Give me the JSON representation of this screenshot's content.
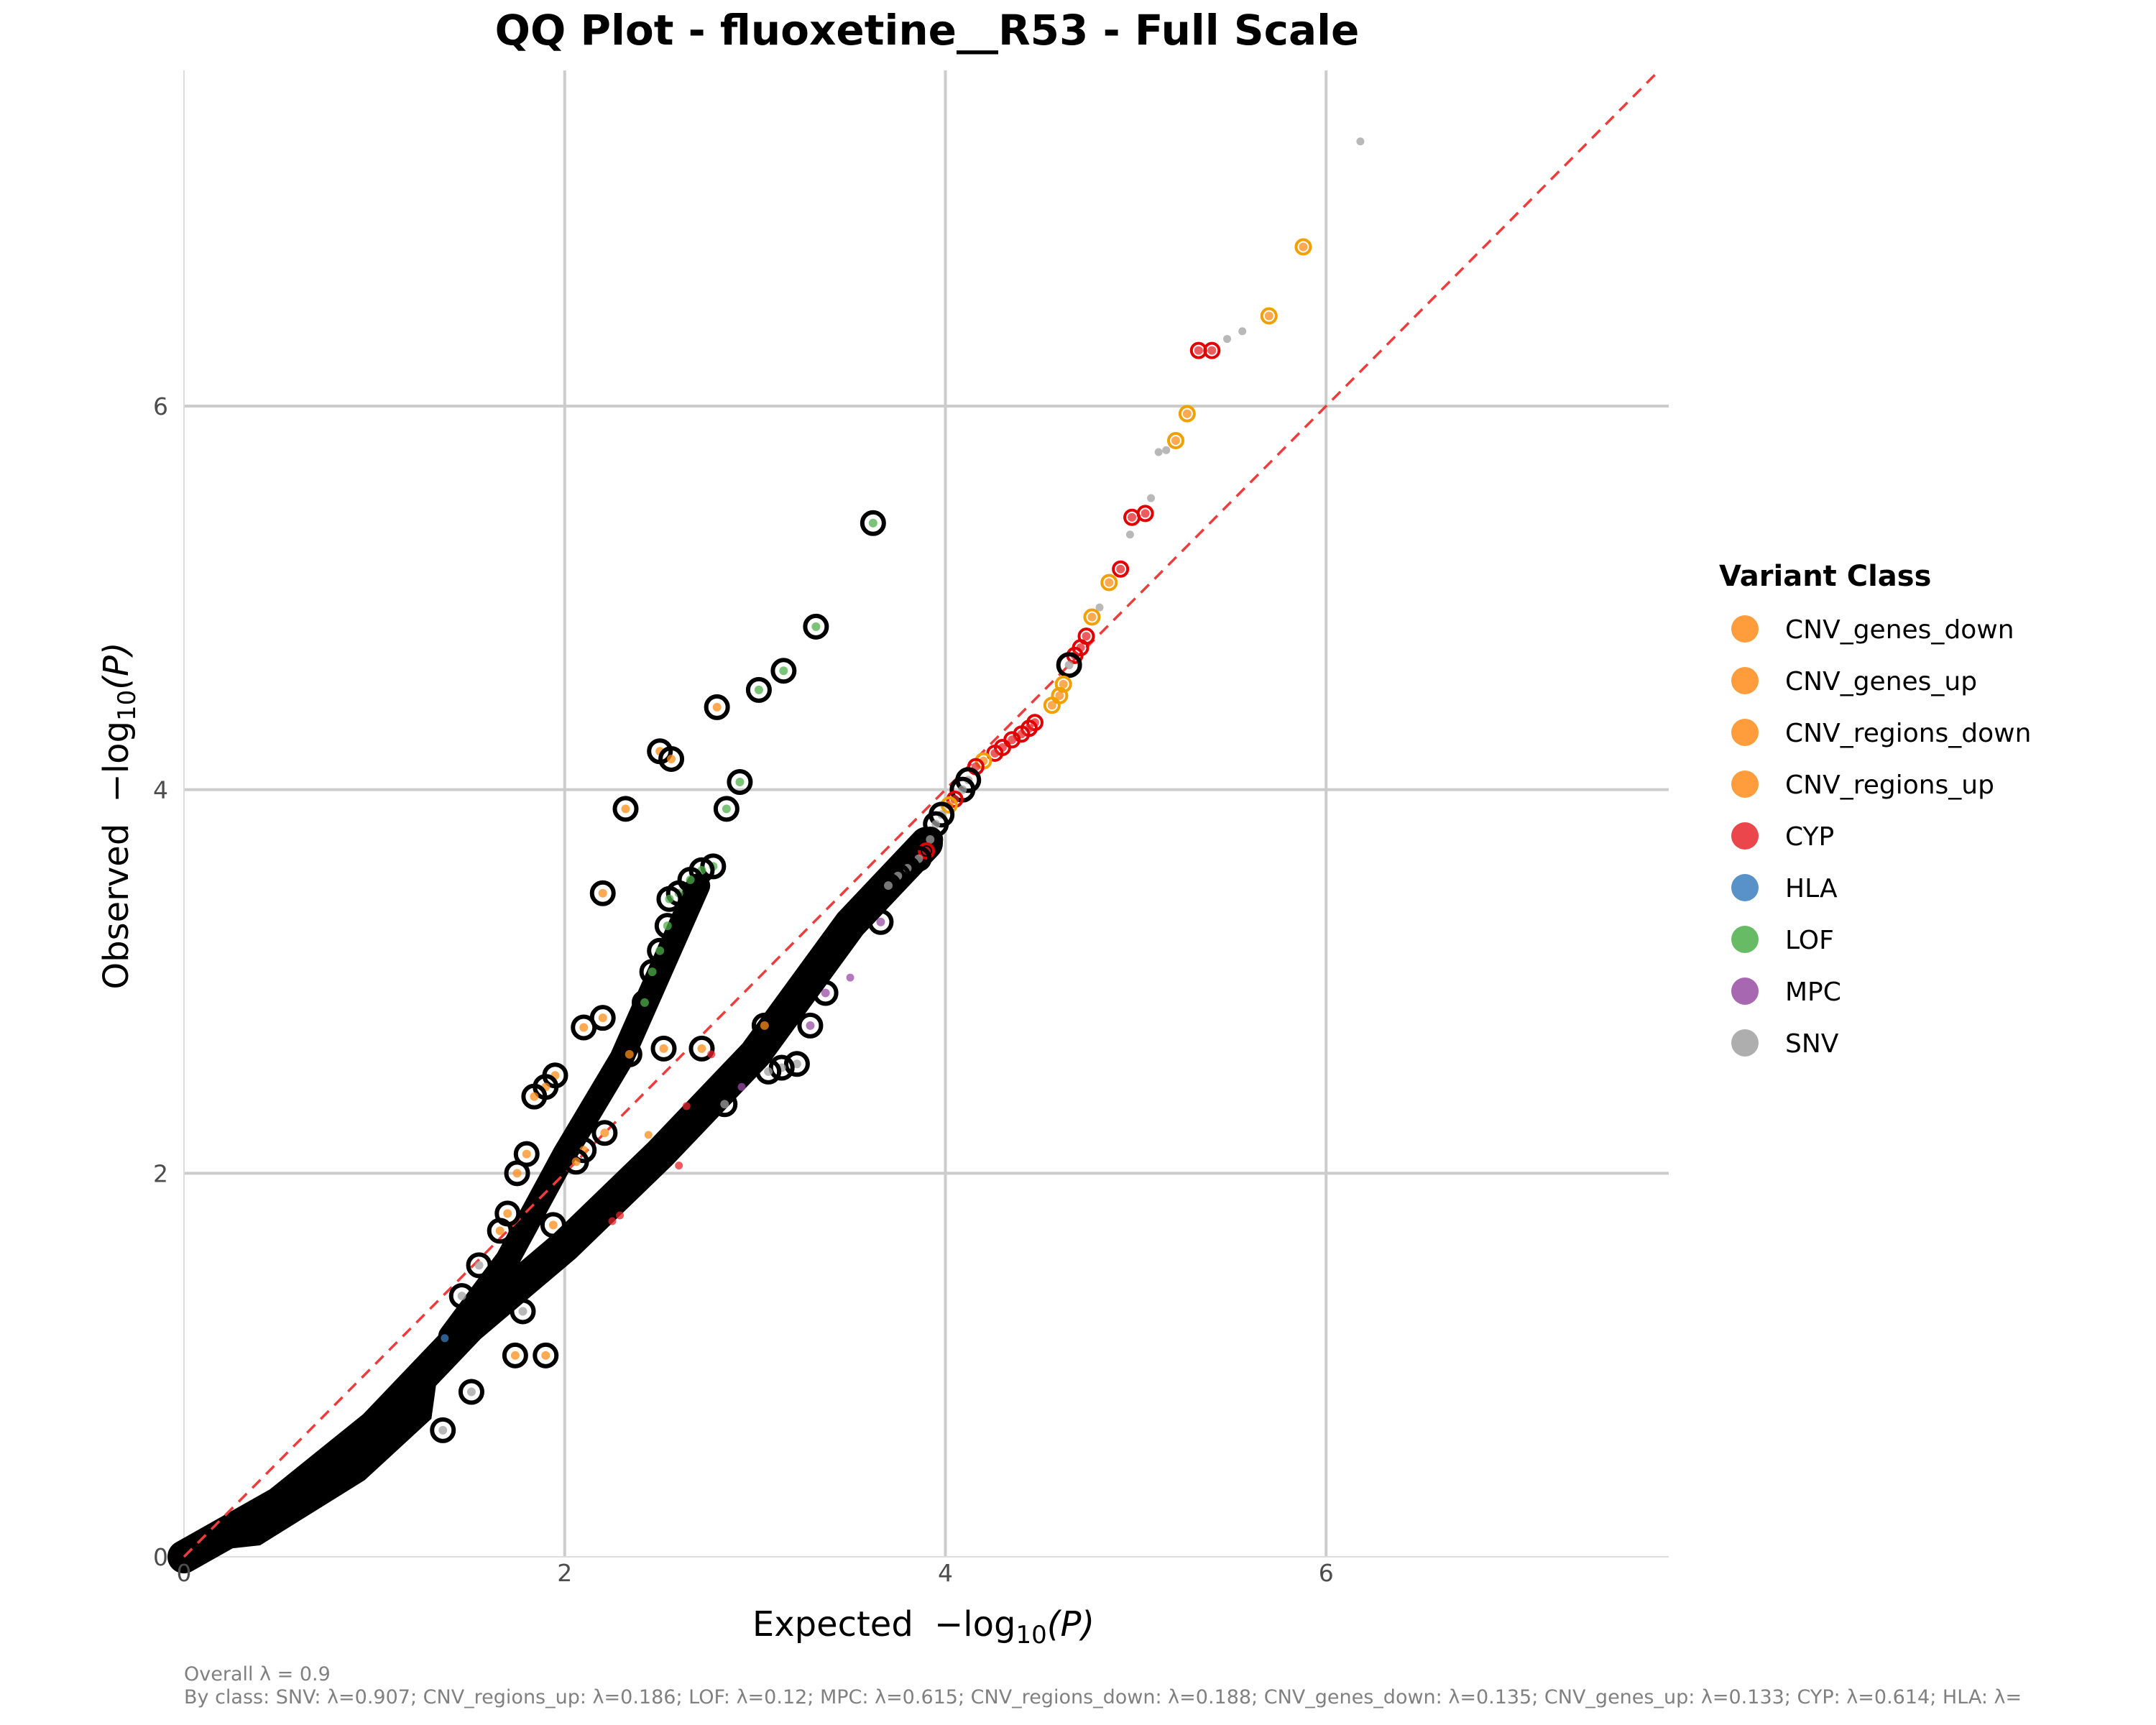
{
  "chart_data": {
    "type": "scatter",
    "title": "QQ Plot - fluoxetine__R53 - Full Scale",
    "xlabel_prefix": "Expected",
    "ylabel_prefix": "Observed",
    "axis_expr": {
      "minus": "−",
      "log": "log",
      "sub": "10",
      "arg": "(P)"
    },
    "xlim": [
      0,
      7.8
    ],
    "ylim": [
      0,
      7.75
    ],
    "x_ticks": [
      "0",
      "2",
      "4",
      "6"
    ],
    "y_ticks": [
      "0",
      "2",
      "4",
      "6"
    ],
    "grid": true,
    "reference_line": {
      "slope": 1,
      "intercept": 0,
      "color": "#EE3B3B",
      "style": "dashed"
    },
    "legend": {
      "title": "Variant Class",
      "position": "right",
      "items": [
        {
          "label": "CNV_genes_down",
          "color": "#FF8C1A"
        },
        {
          "label": "CNV_genes_up",
          "color": "#FF8C1A"
        },
        {
          "label": "CNV_regions_down",
          "color": "#FF8C1A"
        },
        {
          "label": "CNV_regions_up",
          "color": "#FF8C1A"
        },
        {
          "label": "CYP",
          "color": "#E8262B"
        },
        {
          "label": "HLA",
          "color": "#3C7EBF"
        },
        {
          "label": "LOF",
          "color": "#4DAF4A"
        },
        {
          "label": "MPC",
          "color": "#984EA3"
        },
        {
          "label": "SNV",
          "color": "#A0A0A0"
        }
      ]
    },
    "highlight_ring_colors": {
      "default": "#000000",
      "CYP": "#E00000",
      "CNV": "#F0A000"
    },
    "bulk_bands": [
      {
        "name": "main",
        "points": [
          [
            0,
            0
          ],
          [
            0.5,
            0.28
          ],
          [
            1.0,
            0.68
          ],
          [
            1.5,
            1.2
          ],
          [
            2.0,
            1.62
          ],
          [
            2.5,
            2.1
          ],
          [
            3.0,
            2.62
          ],
          [
            3.5,
            3.3
          ],
          [
            3.9,
            3.72
          ]
        ]
      },
      {
        "name": "upper",
        "points": [
          [
            1.4,
            1.15
          ],
          [
            1.7,
            1.55
          ],
          [
            2.0,
            2.1
          ],
          [
            2.3,
            2.6
          ],
          [
            2.5,
            3.05
          ],
          [
            2.7,
            3.5
          ]
        ]
      }
    ],
    "points": [
      {
        "x": 6.18,
        "y": 7.38,
        "class": "SNV",
        "ring": "none"
      },
      {
        "x": 5.88,
        "y": 6.83,
        "class": "CNV_genes_up",
        "ring": "CNV"
      },
      {
        "x": 5.7,
        "y": 6.47,
        "class": "CNV_genes_down",
        "ring": "CNV"
      },
      {
        "x": 5.56,
        "y": 6.39,
        "class": "SNV",
        "ring": "none"
      },
      {
        "x": 5.48,
        "y": 6.35,
        "class": "SNV",
        "ring": "none"
      },
      {
        "x": 5.4,
        "y": 6.29,
        "class": "CYP",
        "ring": "CYP"
      },
      {
        "x": 5.33,
        "y": 6.29,
        "class": "CYP",
        "ring": "CYP"
      },
      {
        "x": 5.27,
        "y": 5.96,
        "class": "CNV_regions_up",
        "ring": "CNV"
      },
      {
        "x": 5.21,
        "y": 5.82,
        "class": "CNV_regions_down",
        "ring": "CNV"
      },
      {
        "x": 5.16,
        "y": 5.77,
        "class": "SNV",
        "ring": "none"
      },
      {
        "x": 5.12,
        "y": 5.76,
        "class": "SNV",
        "ring": "none"
      },
      {
        "x": 5.08,
        "y": 5.52,
        "class": "SNV",
        "ring": "none"
      },
      {
        "x": 5.05,
        "y": 5.44,
        "class": "CYP",
        "ring": "CYP"
      },
      {
        "x": 4.98,
        "y": 5.42,
        "class": "CYP",
        "ring": "CYP"
      },
      {
        "x": 4.97,
        "y": 5.33,
        "class": "SNV",
        "ring": "none"
      },
      {
        "x": 4.92,
        "y": 5.15,
        "class": "CYP",
        "ring": "CYP"
      },
      {
        "x": 4.86,
        "y": 5.08,
        "class": "CNV_genes_down",
        "ring": "CNV"
      },
      {
        "x": 4.81,
        "y": 4.95,
        "class": "SNV",
        "ring": "none"
      },
      {
        "x": 4.77,
        "y": 4.9,
        "class": "CNV_genes_up",
        "ring": "CNV"
      },
      {
        "x": 4.74,
        "y": 4.8,
        "class": "CYP",
        "ring": "CYP"
      },
      {
        "x": 4.71,
        "y": 4.74,
        "class": "CYP",
        "ring": "CYP"
      },
      {
        "x": 4.68,
        "y": 4.7,
        "class": "CYP",
        "ring": "CYP"
      },
      {
        "x": 4.65,
        "y": 4.65,
        "class": "SNV",
        "ring": "default"
      },
      {
        "x": 4.62,
        "y": 4.55,
        "class": "CNV_regions_up",
        "ring": "CNV"
      },
      {
        "x": 4.6,
        "y": 4.49,
        "class": "CNV_regions_down",
        "ring": "CNV"
      },
      {
        "x": 4.56,
        "y": 4.44,
        "class": "CNV_genes_down",
        "ring": "CNV"
      },
      {
        "x": 4.47,
        "y": 4.35,
        "class": "CYP",
        "ring": "CYP"
      },
      {
        "x": 4.44,
        "y": 4.32,
        "class": "CYP",
        "ring": "CYP"
      },
      {
        "x": 4.4,
        "y": 4.29,
        "class": "CYP",
        "ring": "CYP"
      },
      {
        "x": 4.35,
        "y": 4.26,
        "class": "CYP",
        "ring": "CYP"
      },
      {
        "x": 4.3,
        "y": 4.22,
        "class": "CYP",
        "ring": "CYP"
      },
      {
        "x": 4.26,
        "y": 4.19,
        "class": "CYP",
        "ring": "CYP"
      },
      {
        "x": 4.2,
        "y": 4.15,
        "class": "CNV_genes_up",
        "ring": "CNV"
      },
      {
        "x": 4.16,
        "y": 4.12,
        "class": "CYP",
        "ring": "CYP"
      },
      {
        "x": 4.12,
        "y": 4.05,
        "class": "SNV",
        "ring": "default"
      },
      {
        "x": 4.09,
        "y": 4.0,
        "class": "SNV",
        "ring": "default"
      },
      {
        "x": 4.05,
        "y": 3.95,
        "class": "CYP",
        "ring": "CYP"
      },
      {
        "x": 4.02,
        "y": 3.92,
        "class": "CNV_genes_down",
        "ring": "CNV"
      },
      {
        "x": 3.98,
        "y": 3.87,
        "class": "SNV",
        "ring": "default"
      },
      {
        "x": 3.95,
        "y": 3.82,
        "class": "SNV",
        "ring": "default"
      },
      {
        "x": 3.92,
        "y": 3.74,
        "class": "SNV",
        "ring": "default"
      },
      {
        "x": 3.9,
        "y": 3.68,
        "class": "CYP",
        "ring": "CYP"
      },
      {
        "x": 3.86,
        "y": 3.64,
        "class": "SNV",
        "ring": "default"
      },
      {
        "x": 3.8,
        "y": 3.59,
        "class": "SNV",
        "ring": "default"
      },
      {
        "x": 3.75,
        "y": 3.55,
        "class": "SNV",
        "ring": "default"
      },
      {
        "x": 3.7,
        "y": 3.5,
        "class": "SNV",
        "ring": "default"
      },
      {
        "x": 3.66,
        "y": 3.31,
        "class": "MPC",
        "ring": "default"
      },
      {
        "x": 3.62,
        "y": 5.39,
        "class": "LOF",
        "ring": "default"
      },
      {
        "x": 3.32,
        "y": 4.85,
        "class": "LOF",
        "ring": "default"
      },
      {
        "x": 3.15,
        "y": 4.62,
        "class": "LOF",
        "ring": "default"
      },
      {
        "x": 3.02,
        "y": 4.52,
        "class": "LOF",
        "ring": "default"
      },
      {
        "x": 2.8,
        "y": 4.43,
        "class": "CNV_regions_up",
        "ring": "default"
      },
      {
        "x": 2.5,
        "y": 4.2,
        "class": "CNV_regions_up",
        "ring": "default"
      },
      {
        "x": 2.56,
        "y": 4.16,
        "class": "CNV_regions_up",
        "ring": "default"
      },
      {
        "x": 2.92,
        "y": 4.04,
        "class": "LOF",
        "ring": "default"
      },
      {
        "x": 2.32,
        "y": 3.9,
        "class": "CNV_regions_up",
        "ring": "default"
      },
      {
        "x": 2.85,
        "y": 3.9,
        "class": "LOF",
        "ring": "default"
      },
      {
        "x": 2.78,
        "y": 3.6,
        "class": "LOF",
        "ring": "default"
      },
      {
        "x": 2.72,
        "y": 3.58,
        "class": "LOF",
        "ring": "default"
      },
      {
        "x": 2.66,
        "y": 3.53,
        "class": "LOF",
        "ring": "default"
      },
      {
        "x": 2.2,
        "y": 3.46,
        "class": "CNV_regions_up",
        "ring": "default"
      },
      {
        "x": 2.6,
        "y": 3.46,
        "class": "LOF",
        "ring": "default"
      },
      {
        "x": 2.55,
        "y": 3.43,
        "class": "LOF",
        "ring": "default"
      },
      {
        "x": 2.54,
        "y": 3.29,
        "class": "LOF",
        "ring": "default"
      },
      {
        "x": 2.5,
        "y": 3.16,
        "class": "LOF",
        "ring": "default"
      },
      {
        "x": 2.46,
        "y": 3.05,
        "class": "LOF",
        "ring": "default"
      },
      {
        "x": 2.42,
        "y": 2.89,
        "class": "LOF",
        "ring": "default"
      },
      {
        "x": 2.2,
        "y": 2.81,
        "class": "CNV_regions_up",
        "ring": "default"
      },
      {
        "x": 2.1,
        "y": 2.76,
        "class": "CNV_regions_up",
        "ring": "default"
      },
      {
        "x": 2.52,
        "y": 2.65,
        "class": "CNV_regions_up",
        "ring": "default"
      },
      {
        "x": 2.34,
        "y": 2.62,
        "class": "CNV_regions_up",
        "ring": "default"
      },
      {
        "x": 2.72,
        "y": 2.65,
        "class": "CNV_regions_up",
        "ring": "default"
      },
      {
        "x": 3.05,
        "y": 2.77,
        "class": "CNV_regions_up",
        "ring": "default"
      },
      {
        "x": 3.29,
        "y": 2.77,
        "class": "MPC",
        "ring": "default"
      },
      {
        "x": 3.37,
        "y": 2.94,
        "class": "MPC",
        "ring": "default"
      },
      {
        "x": 3.5,
        "y": 3.02,
        "class": "MPC",
        "ring": "none"
      },
      {
        "x": 3.22,
        "y": 2.57,
        "class": "SNV",
        "ring": "default"
      },
      {
        "x": 3.14,
        "y": 2.55,
        "class": "SNV",
        "ring": "default"
      },
      {
        "x": 3.07,
        "y": 2.53,
        "class": "SNV",
        "ring": "default"
      },
      {
        "x": 2.93,
        "y": 2.45,
        "class": "MPC",
        "ring": "none"
      },
      {
        "x": 2.84,
        "y": 2.36,
        "class": "SNV",
        "ring": "default"
      },
      {
        "x": 2.77,
        "y": 2.62,
        "class": "CYP",
        "ring": "none"
      },
      {
        "x": 2.64,
        "y": 2.35,
        "class": "CYP",
        "ring": "none"
      },
      {
        "x": 2.44,
        "y": 2.2,
        "class": "CNV_genes_up",
        "ring": "none"
      },
      {
        "x": 1.95,
        "y": 2.51,
        "class": "CNV_regions_up",
        "ring": "default"
      },
      {
        "x": 1.9,
        "y": 2.45,
        "class": "CNV_regions_up",
        "ring": "default"
      },
      {
        "x": 1.84,
        "y": 2.4,
        "class": "CNV_regions_up",
        "ring": "default"
      },
      {
        "x": 2.21,
        "y": 2.21,
        "class": "CNV_regions_up",
        "ring": "default"
      },
      {
        "x": 2.1,
        "y": 2.12,
        "class": "CNV_regions_up",
        "ring": "default"
      },
      {
        "x": 2.06,
        "y": 2.06,
        "class": "CNV_regions_up",
        "ring": "default"
      },
      {
        "x": 1.8,
        "y": 2.1,
        "class": "CNV_regions_up",
        "ring": "default"
      },
      {
        "x": 1.75,
        "y": 2.0,
        "class": "CNV_regions_up",
        "ring": "default"
      },
      {
        "x": 1.7,
        "y": 1.79,
        "class": "CNV_regions_up",
        "ring": "default"
      },
      {
        "x": 1.66,
        "y": 1.7,
        "class": "CNV_regions_up",
        "ring": "default"
      },
      {
        "x": 1.94,
        "y": 1.73,
        "class": "CNV_regions_up",
        "ring": "default"
      },
      {
        "x": 2.29,
        "y": 1.78,
        "class": "CYP",
        "ring": "none"
      },
      {
        "x": 2.25,
        "y": 1.75,
        "class": "CYP",
        "ring": "none"
      },
      {
        "x": 2.6,
        "y": 2.04,
        "class": "CYP",
        "ring": "none"
      },
      {
        "x": 1.74,
        "y": 1.05,
        "class": "CNV_regions_up",
        "ring": "default"
      },
      {
        "x": 1.9,
        "y": 1.05,
        "class": "CNV_regions_up",
        "ring": "default"
      },
      {
        "x": 1.37,
        "y": 1.14,
        "class": "HLA",
        "ring": "none"
      },
      {
        "x": 1.78,
        "y": 1.28,
        "class": "SNV",
        "ring": "default"
      },
      {
        "x": 1.51,
        "y": 0.86,
        "class": "SNV",
        "ring": "default"
      },
      {
        "x": 1.36,
        "y": 0.66,
        "class": "SNV",
        "ring": "default"
      },
      {
        "x": 1.55,
        "y": 1.52,
        "class": "SNV",
        "ring": "default"
      },
      {
        "x": 1.46,
        "y": 1.36,
        "class": "SNV",
        "ring": "default"
      }
    ]
  },
  "caption": {
    "line1": "Overall λ = 0.9",
    "line2": "By class: SNV: λ=0.907; CNV_regions_up: λ=0.186; LOF: λ=0.12; MPC: λ=0.615; CNV_regions_down: λ=0.188; CNV_genes_down: λ=0.135; CNV_genes_up: λ=0.133; CYP: λ=0.614; HLA: λ="
  }
}
